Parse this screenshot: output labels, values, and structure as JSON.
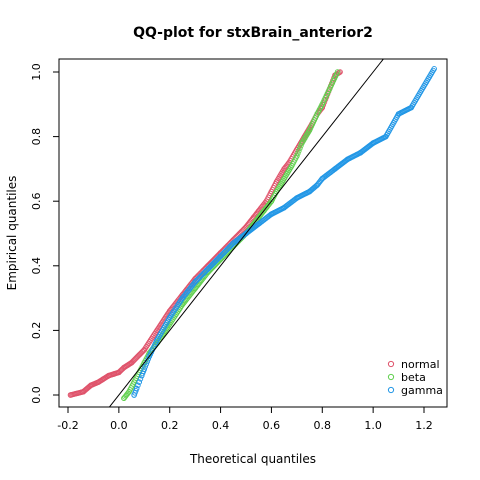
{
  "chart_data": {
    "type": "scatter",
    "title": "QQ-plot for stxBrain_anterior2",
    "xlabel": "Theoretical quantiles",
    "ylabel": "Empirical quantiles",
    "xlim": [
      -0.2,
      1.25
    ],
    "ylim": [
      -0.02,
      1.08
    ],
    "x_ticks": [
      -0.2,
      0.0,
      0.2,
      0.4,
      0.6,
      0.8,
      1.0,
      1.2
    ],
    "x_tick_labels": [
      "-0.2",
      "0.0",
      "0.2",
      "0.4",
      "0.6",
      "0.8",
      "1.0",
      "1.2"
    ],
    "y_ticks": [
      0.0,
      0.2,
      0.4,
      0.6,
      0.8,
      1.0
    ],
    "y_tick_labels": [
      "0.0",
      "0.2",
      "0.4",
      "0.6",
      "0.8",
      "1.0"
    ],
    "legend_position": "bottom-right",
    "reference_line": {
      "slope": 1,
      "intercept": 0,
      "color": "#000000"
    },
    "marker": "open-circle",
    "series": [
      {
        "name": "normal",
        "color": "#DF536B",
        "x": [
          -0.19,
          -0.14,
          -0.11,
          -0.08,
          -0.06,
          -0.04,
          -0.02,
          0.0,
          0.02,
          0.05,
          0.1,
          0.15,
          0.2,
          0.25,
          0.3,
          0.35,
          0.4,
          0.45,
          0.5,
          0.53,
          0.55,
          0.58,
          0.6,
          0.62,
          0.65,
          0.67,
          0.7,
          0.73,
          0.76,
          0.78,
          0.8,
          0.85,
          0.87
        ],
        "y": [
          0.0,
          0.01,
          0.03,
          0.04,
          0.05,
          0.06,
          0.065,
          0.07,
          0.085,
          0.1,
          0.14,
          0.2,
          0.26,
          0.31,
          0.36,
          0.4,
          0.44,
          0.48,
          0.52,
          0.55,
          0.57,
          0.6,
          0.63,
          0.66,
          0.7,
          0.72,
          0.76,
          0.8,
          0.84,
          0.87,
          0.89,
          0.99,
          1.0
        ]
      },
      {
        "name": "beta",
        "color": "#61D04F",
        "x": [
          0.02,
          0.04,
          0.06,
          0.08,
          0.1,
          0.12,
          0.15,
          0.2,
          0.25,
          0.3,
          0.35,
          0.4,
          0.45,
          0.5,
          0.52,
          0.55,
          0.57,
          0.6,
          0.62,
          0.65,
          0.68,
          0.7,
          0.72,
          0.75,
          0.78,
          0.8,
          0.86
        ],
        "y": [
          -0.01,
          0.01,
          0.04,
          0.07,
          0.1,
          0.13,
          0.16,
          0.22,
          0.28,
          0.33,
          0.38,
          0.42,
          0.46,
          0.5,
          0.52,
          0.55,
          0.57,
          0.6,
          0.63,
          0.67,
          0.71,
          0.74,
          0.78,
          0.82,
          0.87,
          0.9,
          1.0
        ]
      },
      {
        "name": "gamma",
        "color": "#2297E6",
        "x": [
          0.06,
          0.07,
          0.08,
          0.09,
          0.1,
          0.12,
          0.15,
          0.2,
          0.25,
          0.3,
          0.35,
          0.4,
          0.45,
          0.5,
          0.55,
          0.6,
          0.65,
          0.7,
          0.75,
          0.78,
          0.8,
          0.85,
          0.9,
          0.95,
          1.0,
          1.05,
          1.1,
          1.15,
          1.24
        ],
        "y": [
          0.0,
          0.02,
          0.04,
          0.06,
          0.08,
          0.12,
          0.17,
          0.24,
          0.3,
          0.35,
          0.39,
          0.43,
          0.47,
          0.5,
          0.53,
          0.56,
          0.58,
          0.61,
          0.63,
          0.65,
          0.67,
          0.7,
          0.73,
          0.75,
          0.78,
          0.8,
          0.87,
          0.89,
          1.01
        ]
      }
    ]
  }
}
